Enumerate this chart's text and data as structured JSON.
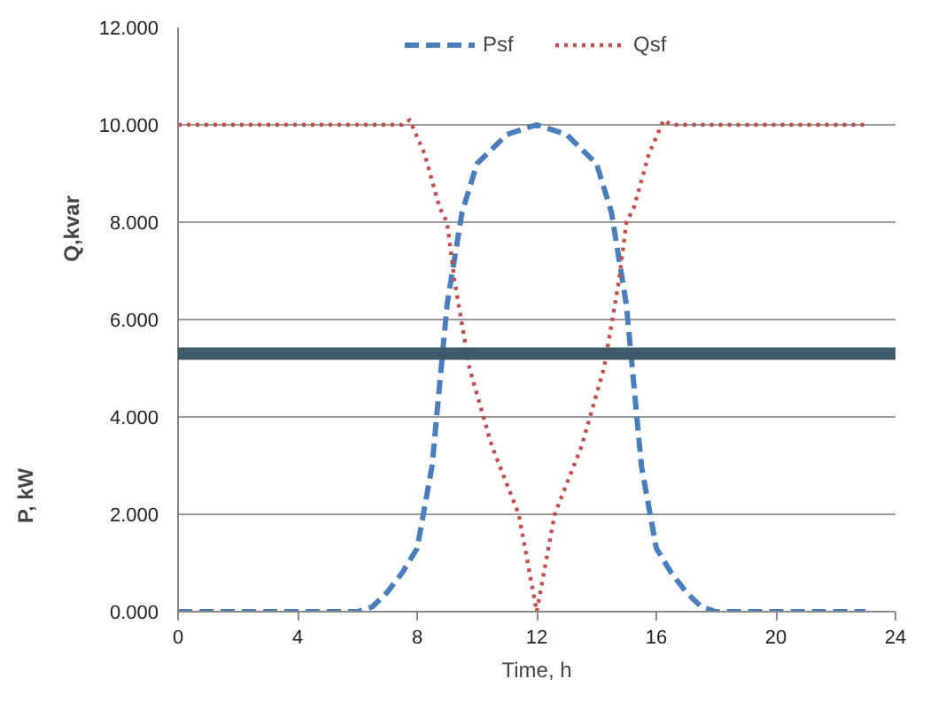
{
  "chart_data": {
    "type": "line",
    "xlabel": "Time, h",
    "ylabel": "P, kW",
    "annotations": [
      "Q,kvar"
    ],
    "xlim": [
      0,
      24
    ],
    "xticks": [
      0,
      4,
      8,
      12,
      16,
      20,
      24
    ],
    "ylim": [
      0,
      12
    ],
    "yticks": [
      {
        "value": 0,
        "label": "0.000"
      },
      {
        "value": 2,
        "label": "2.000"
      },
      {
        "value": 4,
        "label": "4.000"
      },
      {
        "value": 6,
        "label": "6.000"
      },
      {
        "value": 8,
        "label": "8.000"
      },
      {
        "value": 10,
        "label": "10.000"
      },
      {
        "value": 12,
        "label": "12.000"
      }
    ],
    "grid": "y",
    "legend": "top",
    "marker": "none",
    "ref_lines": [
      {
        "axis": "y",
        "value": 5.3,
        "color": "#3d5a6a"
      }
    ],
    "series": [
      {
        "name": "Psf",
        "color": "#4a7ebb",
        "line_style": "dashed",
        "x": [
          0,
          2,
          4,
          6,
          6.5,
          7,
          7.5,
          8,
          8.5,
          9,
          9.5,
          10,
          11,
          12,
          13,
          14,
          14.5,
          15,
          15.5,
          16,
          16.5,
          17,
          17.5,
          18,
          20,
          23
        ],
        "values": [
          0,
          0,
          0,
          0,
          0.1,
          0.4,
          0.8,
          1.3,
          3.0,
          6.3,
          8.2,
          9.2,
          9.8,
          10,
          9.8,
          9.2,
          8.2,
          6.3,
          3.0,
          1.3,
          0.8,
          0.4,
          0.1,
          0,
          0,
          0
        ]
      },
      {
        "name": "Qsf",
        "color": "#c0504d",
        "line_style": "dotted",
        "x": [
          0,
          2,
          4,
          6,
          7.5,
          7.75,
          8.25,
          8.75,
          9,
          9.25,
          9.75,
          10.5,
          11.4,
          12,
          12.6,
          13.5,
          14.25,
          14.75,
          15,
          15.25,
          15.75,
          16.25,
          16.5,
          18,
          20,
          23
        ],
        "values": [
          10,
          10,
          10,
          10,
          10,
          10.1,
          9.4,
          8.3,
          8,
          6.8,
          5.0,
          3.4,
          2,
          0,
          2,
          3.4,
          5.0,
          6.8,
          8,
          8.3,
          9.4,
          10.1,
          10,
          10,
          10,
          10
        ]
      }
    ]
  }
}
